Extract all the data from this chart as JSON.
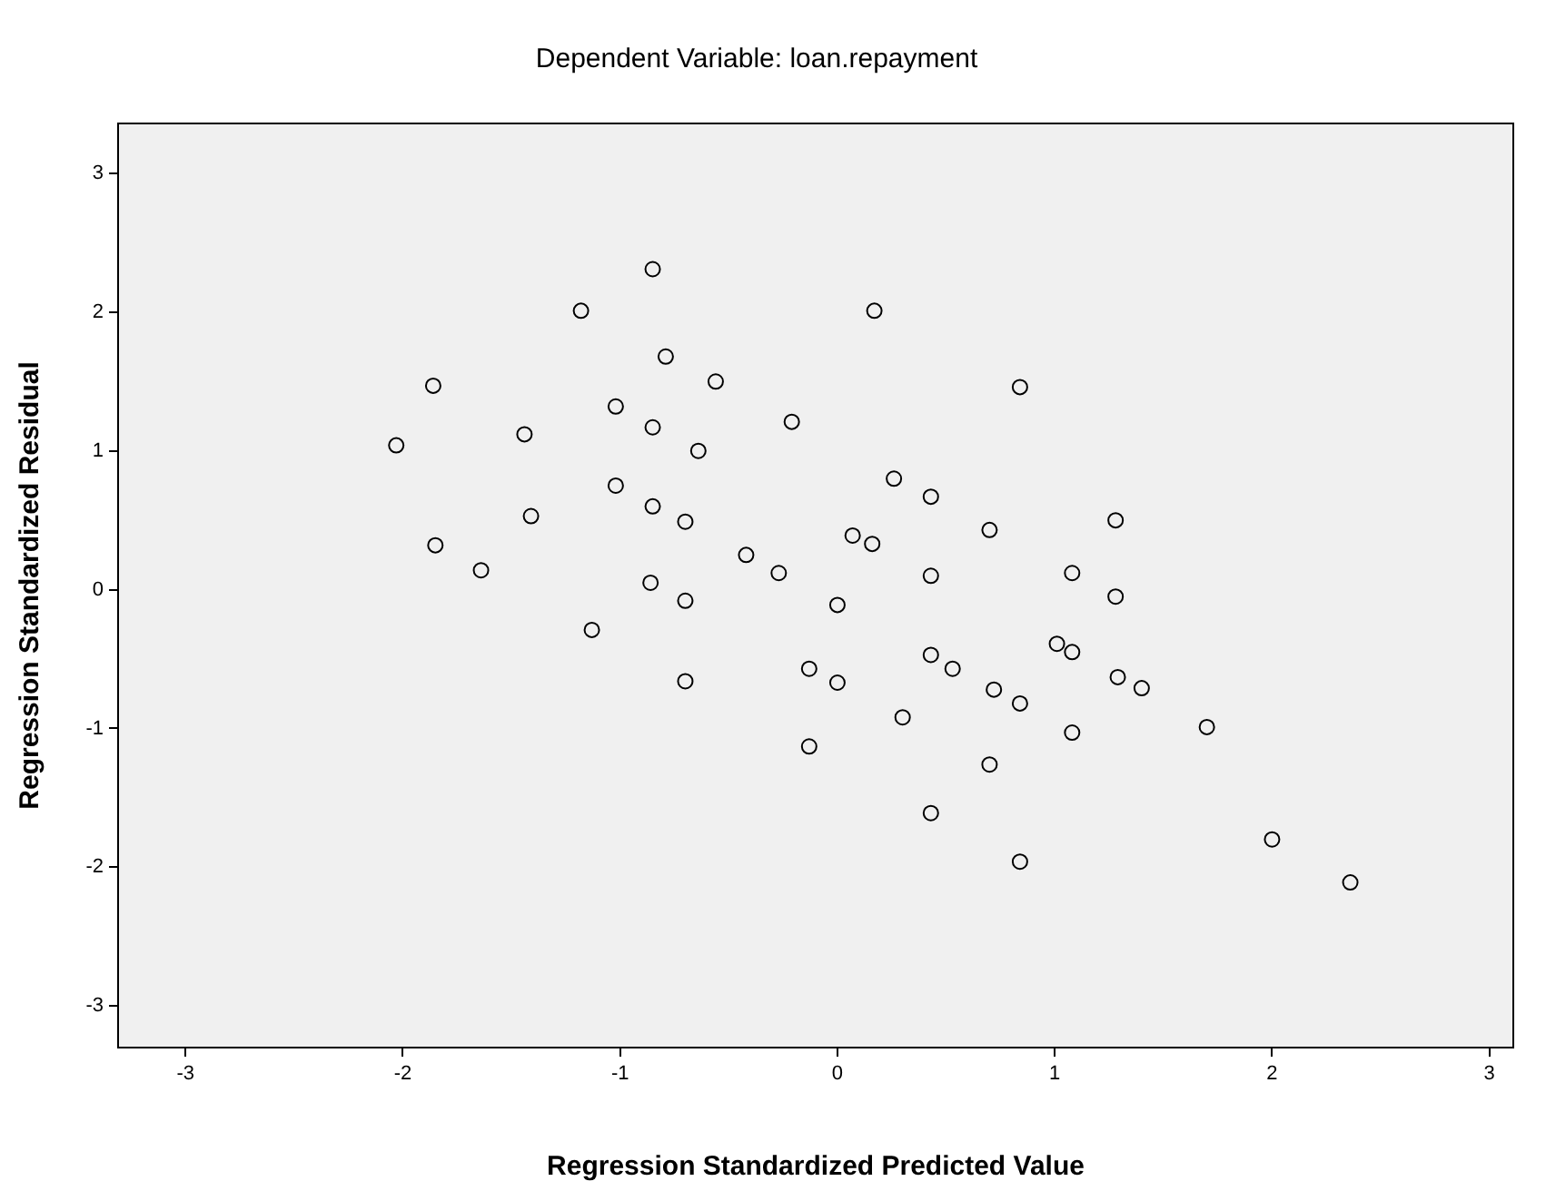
{
  "chart_data": {
    "type": "scatter",
    "title": "Dependent Variable: loan.repayment",
    "xlabel": "Regression Standardized Predicted Value",
    "ylabel": "Regression Standardized Residual",
    "xlim": [
      -3.31,
      3.11
    ],
    "ylim": [
      -3.3,
      3.36
    ],
    "xticks": [
      -3,
      -2,
      -1,
      0,
      1,
      2,
      3
    ],
    "yticks": [
      -3,
      -2,
      -1,
      0,
      1,
      2,
      3
    ],
    "grid": false,
    "legend": false,
    "marker": "circle",
    "series": [
      {
        "color": "#000000",
        "x": [
          -0.85,
          -1.18,
          0.17,
          -0.79,
          -1.86,
          -0.56,
          0.84,
          -1.02,
          -0.21,
          -1.44,
          -0.85,
          -2.03,
          -0.64,
          0.26,
          -1.02,
          0.43,
          1.28,
          -0.85,
          -1.41,
          -0.7,
          0.7,
          -1.85,
          0.07,
          0.16,
          -0.42,
          -1.64,
          -0.27,
          1.08,
          0.43,
          -0.86,
          -0.7,
          1.28,
          0.0,
          -1.13,
          1.01,
          1.08,
          -0.13,
          0.43,
          0.53,
          -0.7,
          0.0,
          1.29,
          1.4,
          0.72,
          0.84,
          1.7,
          1.08,
          0.3,
          -0.13,
          0.7,
          0.43,
          0.84,
          2.0,
          2.36
        ],
        "values": [
          2.31,
          2.01,
          2.01,
          1.68,
          1.47,
          1.5,
          1.46,
          1.32,
          1.21,
          1.12,
          1.17,
          1.04,
          1.0,
          0.8,
          0.75,
          0.67,
          0.5,
          0.6,
          0.53,
          0.49,
          0.43,
          0.32,
          0.39,
          0.33,
          0.25,
          0.14,
          0.12,
          0.12,
          0.1,
          0.05,
          -0.08,
          -0.05,
          -0.11,
          -0.29,
          -0.39,
          -0.45,
          -0.57,
          -0.47,
          -0.57,
          -0.66,
          -0.67,
          -0.63,
          -0.71,
          -0.72,
          -0.82,
          -0.99,
          -1.03,
          -0.92,
          -1.13,
          -1.26,
          -1.61,
          -1.96,
          -1.8,
          -2.11
        ]
      }
    ]
  }
}
